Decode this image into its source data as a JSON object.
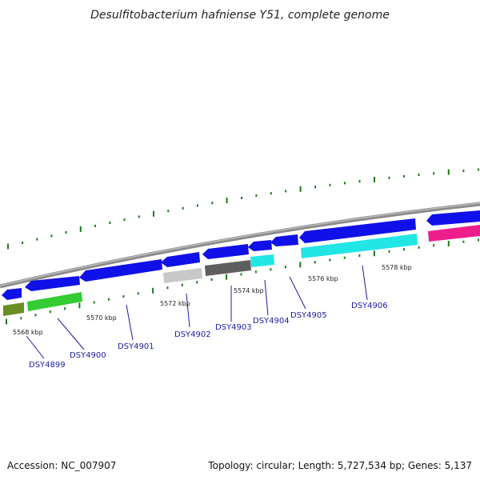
{
  "title": "Desulfitobacterium hafniense Y51, complete genome",
  "accession": "Accession: NC_007907",
  "topology": "Topology: circular; Length: 5,727,534 bp; Genes: 5,137",
  "colors": {
    "forward_gene": "#1010e8",
    "backbone": "#888888",
    "tick": "#1a7a1a",
    "label": "#1a1aa6"
  },
  "kbp_labels": [
    "5568 kbp",
    "5570 kbp",
    "5572 kbp",
    "5574 kbp",
    "5576 kbp",
    "5578 kbp"
  ],
  "genes": [
    {
      "name": "DSY4899",
      "color": "#6b8e23"
    },
    {
      "name": "DSY4900",
      "color": "#33cc33"
    },
    {
      "name": "DSY4901",
      "color": "#1010e8"
    },
    {
      "name": "DSY4902",
      "color": "#c0c0c0"
    },
    {
      "name": "DSY4903",
      "color": "#5a5a5a"
    },
    {
      "name": "DSY4904",
      "color": "#22e6e6"
    },
    {
      "name": "DSY4905",
      "color": "#1010e8"
    },
    {
      "name": "DSY4906",
      "color": "#22e6e6"
    }
  ]
}
